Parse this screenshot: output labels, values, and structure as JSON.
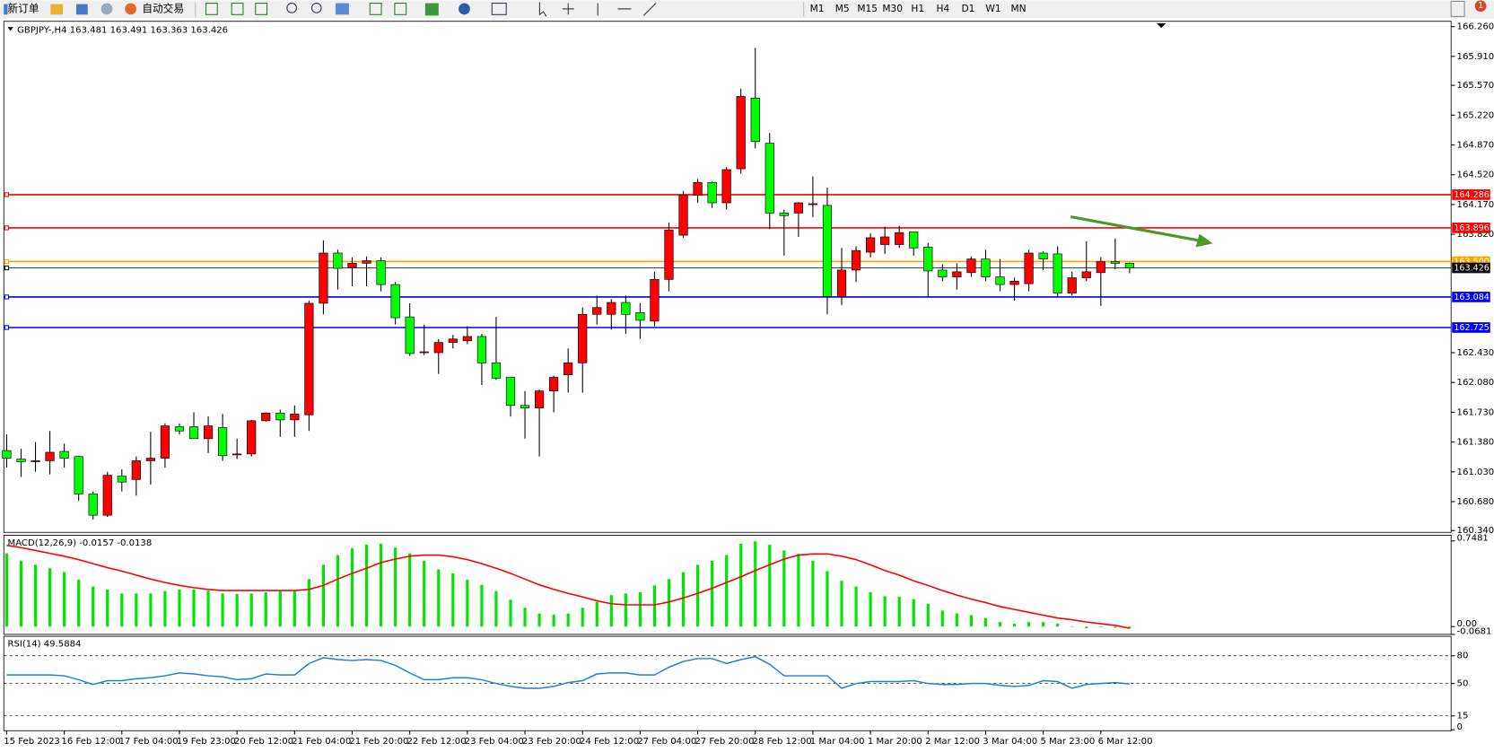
{
  "toolbar": {
    "new_order": "新订单",
    "auto_trading": "自动交易",
    "timeframes": [
      "M1",
      "M5",
      "M15",
      "M30",
      "H1",
      "H4",
      "D1",
      "W1",
      "MN"
    ]
  },
  "notification_count": "1",
  "x_labels": [
    "15 Feb 2023",
    "16 Feb 12:00",
    "17 Feb 04:00",
    "19 Feb 23:00",
    "20 Feb 12:00",
    "21 Feb 04:00",
    "21 Feb 20:00",
    "22 Feb 12:00",
    "23 Feb 04:00",
    "23 Feb 20:00",
    "24 Feb 12:00",
    "27 Feb 04:00",
    "27 Feb 20:00",
    "28 Feb 12:00",
    "1 Mar 04:00",
    "1 Mar 20:00",
    "2 Mar 12:00",
    "3 Mar 04:00",
    "5 Mar 23:00",
    "6 Mar 12:00"
  ],
  "chart_data": [
    {
      "type": "candlestick",
      "title": "GBPJPY-,H4  163.481 163.491 163.363 163.426",
      "up_color": "#ff0000",
      "down_color": "#00ff00",
      "open": [
        161.28,
        161.18,
        161.16,
        161.16,
        161.27,
        161.21,
        160.77,
        160.52,
        160.98,
        160.94,
        161.16,
        161.19,
        161.56,
        161.56,
        161.42,
        161.55,
        161.24,
        161.24,
        161.63,
        161.72,
        161.64,
        161.7,
        163.01,
        163.6,
        163.43,
        163.48,
        163.51,
        163.23,
        162.85,
        162.44,
        162.43,
        162.55,
        162.57,
        162.62,
        162.31,
        162.14,
        161.81,
        161.78,
        161.98,
        162.17,
        162.31,
        162.88,
        162.88,
        163.02,
        162.9,
        162.8,
        163.29,
        163.81,
        164.28,
        164.43,
        164.19,
        164.59,
        165.42,
        164.89,
        164.07,
        164.07,
        164.18,
        164.16,
        163.09,
        163.4,
        163.61,
        163.7,
        163.7,
        163.85,
        163.67,
        163.4,
        163.32,
        163.37,
        163.53,
        163.32,
        163.23,
        163.24,
        163.6,
        163.59,
        163.13,
        163.31,
        163.37,
        163.5,
        163.481
      ],
      "high": [
        161.47,
        161.3,
        161.38,
        161.51,
        161.36,
        161.22,
        160.8,
        161.03,
        161.06,
        161.21,
        161.5,
        161.6,
        161.6,
        161.73,
        161.68,
        161.71,
        161.42,
        161.64,
        161.73,
        161.76,
        161.81,
        163.04,
        163.75,
        163.64,
        163.55,
        163.56,
        163.55,
        163.26,
        163.01,
        162.76,
        162.59,
        162.64,
        162.74,
        162.65,
        162.85,
        162.14,
        161.98,
        162.0,
        162.16,
        162.48,
        162.96,
        163.1,
        163.06,
        163.1,
        163.01,
        163.38,
        163.96,
        164.33,
        164.47,
        164.44,
        164.61,
        165.53,
        166.01,
        165.01,
        164.11,
        164.2,
        164.5,
        164.37,
        163.66,
        163.68,
        163.83,
        163.91,
        163.92,
        163.85,
        163.72,
        163.47,
        163.48,
        163.56,
        163.64,
        163.53,
        163.31,
        163.64,
        163.62,
        163.68,
        163.38,
        163.74,
        163.55,
        163.77,
        163.491
      ],
      "low": [
        161.08,
        160.97,
        161.03,
        161.0,
        161.08,
        160.69,
        160.47,
        160.5,
        160.8,
        160.75,
        160.88,
        161.08,
        161.47,
        161.42,
        161.25,
        161.16,
        161.18,
        161.21,
        161.62,
        161.44,
        161.44,
        161.51,
        162.88,
        163.17,
        163.21,
        163.21,
        163.15,
        162.76,
        162.39,
        162.4,
        162.18,
        162.48,
        162.53,
        162.05,
        162.11,
        161.68,
        161.42,
        161.21,
        161.73,
        161.96,
        161.96,
        162.76,
        162.7,
        162.65,
        162.59,
        162.74,
        163.15,
        163.78,
        164.19,
        164.13,
        164.11,
        164.53,
        164.83,
        163.88,
        163.57,
        163.79,
        164.02,
        162.88,
        162.99,
        163.26,
        163.55,
        163.59,
        163.66,
        163.57,
        163.08,
        163.27,
        163.17,
        163.32,
        163.27,
        163.15,
        163.04,
        163.15,
        163.4,
        163.08,
        163.1,
        163.27,
        162.98,
        163.41,
        163.363
      ],
      "close": [
        161.19,
        161.15,
        161.16,
        161.26,
        161.19,
        160.77,
        160.52,
        160.99,
        160.91,
        161.16,
        161.19,
        161.57,
        161.51,
        161.42,
        161.57,
        161.22,
        161.24,
        161.63,
        161.72,
        161.64,
        161.71,
        163.01,
        163.6,
        163.42,
        163.48,
        163.51,
        163.23,
        162.84,
        162.42,
        162.44,
        162.55,
        162.59,
        162.62,
        162.31,
        162.13,
        161.81,
        161.78,
        161.98,
        162.14,
        162.31,
        162.88,
        162.96,
        163.02,
        162.88,
        162.81,
        163.29,
        163.87,
        164.28,
        164.43,
        164.19,
        164.58,
        165.44,
        164.91,
        164.07,
        164.04,
        164.19,
        164.18,
        163.09,
        163.4,
        163.63,
        163.78,
        163.79,
        163.84,
        163.66,
        163.39,
        163.32,
        163.38,
        163.53,
        163.32,
        163.23,
        163.27,
        163.6,
        163.53,
        163.13,
        163.31,
        163.38,
        163.5,
        163.48,
        163.426
      ],
      "ylim": [
        160.33,
        166.3
      ],
      "yticks": [
        {
          "value": 166.26,
          "label": "166.260"
        },
        {
          "value": 165.91,
          "label": "165.910"
        },
        {
          "value": 165.57,
          "label": "165.570"
        },
        {
          "value": 165.22,
          "label": "165.220"
        },
        {
          "value": 164.87,
          "label": "164.870"
        },
        {
          "value": 164.52,
          "label": "164.520"
        },
        {
          "value": 164.17,
          "label": "164.170"
        },
        {
          "value": 163.82,
          "label": "163.820"
        },
        {
          "value": 162.43,
          "label": "162.430"
        },
        {
          "value": 162.08,
          "label": "162.080"
        },
        {
          "value": 161.73,
          "label": "161.730"
        },
        {
          "value": 161.38,
          "label": "161.380"
        },
        {
          "value": 161.03,
          "label": "161.030"
        },
        {
          "value": 160.68,
          "label": "160.680"
        },
        {
          "value": 160.34,
          "label": "160.340"
        }
      ],
      "levels": [
        {
          "value": 164.286,
          "color": "#ff0000"
        },
        {
          "value": 163.896,
          "color": "#ff0000"
        },
        {
          "value": 163.5,
          "label": "163.500",
          "color": "#ffa500"
        },
        {
          "value": 163.426,
          "color": "#000000"
        },
        {
          "value": 163.084,
          "color": "#0000ff"
        },
        {
          "value": 162.725,
          "color": "#0000ff"
        }
      ]
    },
    {
      "type": "macd",
      "title": "MACD(12,26,9) -0.0157 -0.0138",
      "histogram": {
        "color": "#00e600",
        "values": [
          0.64,
          0.575,
          0.54,
          0.51,
          0.475,
          0.41,
          0.35,
          0.325,
          0.29,
          0.29,
          0.29,
          0.31,
          0.325,
          0.325,
          0.315,
          0.29,
          0.285,
          0.29,
          0.3,
          0.31,
          0.31,
          0.415,
          0.54,
          0.625,
          0.685,
          0.715,
          0.725,
          0.69,
          0.64,
          0.575,
          0.5,
          0.465,
          0.41,
          0.365,
          0.31,
          0.235,
          0.165,
          0.115,
          0.105,
          0.115,
          0.165,
          0.215,
          0.275,
          0.29,
          0.3,
          0.36,
          0.415,
          0.475,
          0.54,
          0.575,
          0.625,
          0.725,
          0.745,
          0.715,
          0.665,
          0.635,
          0.575,
          0.485,
          0.4,
          0.35,
          0.3,
          0.265,
          0.26,
          0.24,
          0.2,
          0.14,
          0.115,
          0.1,
          0.075,
          0.04,
          0.025,
          0.04,
          0.04,
          0.025,
          0.0,
          -0.015,
          -0.005,
          -0.01,
          -0.0157
        ]
      },
      "signal": {
        "color": "#ff0000",
        "values": [
          0.71,
          0.69,
          0.665,
          0.64,
          0.615,
          0.585,
          0.55,
          0.515,
          0.485,
          0.45,
          0.415,
          0.385,
          0.36,
          0.34,
          0.325,
          0.315,
          0.315,
          0.315,
          0.315,
          0.315,
          0.315,
          0.325,
          0.36,
          0.415,
          0.465,
          0.51,
          0.56,
          0.59,
          0.615,
          0.625,
          0.625,
          0.61,
          0.585,
          0.55,
          0.51,
          0.465,
          0.415,
          0.365,
          0.325,
          0.29,
          0.26,
          0.225,
          0.2,
          0.19,
          0.19,
          0.19,
          0.215,
          0.25,
          0.29,
          0.335,
          0.385,
          0.435,
          0.49,
          0.54,
          0.59,
          0.625,
          0.635,
          0.635,
          0.615,
          0.585,
          0.54,
          0.49,
          0.45,
          0.4,
          0.36,
          0.315,
          0.275,
          0.24,
          0.21,
          0.175,
          0.15,
          0.125,
          0.1,
          0.075,
          0.06,
          0.04,
          0.025,
          0.01,
          -0.0138
        ]
      },
      "ylim": [
        -0.0681,
        0.7481
      ],
      "yticks": [
        0.7481,
        {
          "value": 0,
          "label": "0.00"
        },
        -0.0681
      ]
    },
    {
      "type": "rsi",
      "title": "RSI(14) 49.5884",
      "color": "#1e7fe0",
      "values": [
        59.3,
        59.3,
        59.3,
        59.3,
        58.3,
        54.1,
        49.0,
        53.1,
        53.1,
        55.2,
        56.2,
        58.3,
        61.4,
        60.3,
        58.3,
        57.2,
        54.1,
        55.2,
        60.3,
        59.3,
        59.3,
        71.7,
        77.9,
        75.9,
        74.8,
        75.9,
        74.8,
        69.6,
        61.4,
        54.1,
        54.1,
        56.2,
        56.2,
        54.1,
        50,
        46.9,
        44.8,
        44.8,
        46.9,
        51.0,
        53.1,
        60.3,
        61.4,
        61.4,
        59.3,
        59.3,
        67.6,
        73.8,
        76.9,
        76.9,
        71.7,
        75.9,
        79.0,
        70.7,
        58.3,
        58.3,
        58.3,
        58.3,
        44.8,
        50,
        52.1,
        52.1,
        52.1,
        53.1,
        50,
        49.0,
        49.0,
        50,
        50,
        47.9,
        46.9,
        47.9,
        53.1,
        52.1,
        44.8,
        49.0,
        50,
        51.0,
        49.5884
      ],
      "ylim": [
        0,
        100
      ],
      "yticks": [
        80,
        50,
        15,
        0
      ],
      "grid": true
    }
  ]
}
